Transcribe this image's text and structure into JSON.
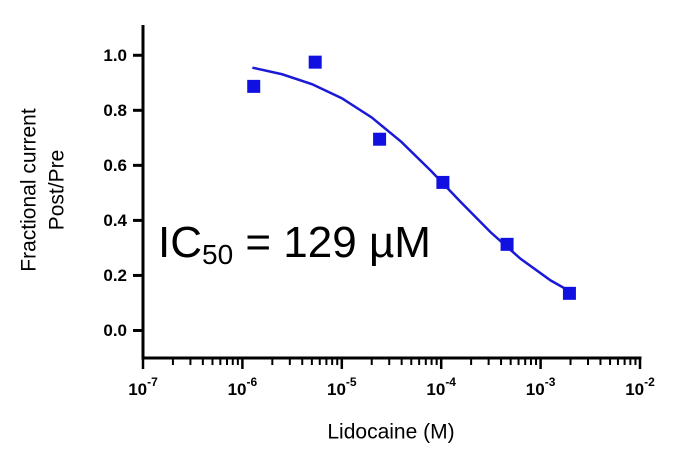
{
  "chart_data": {
    "type": "scatter",
    "x_label": "Lidocaine (M)",
    "y_label": [
      "Fractional current",
      "Post/Pre"
    ],
    "annotation": {
      "text": "IC",
      "sub": "50",
      "rest": " = 129 µM"
    },
    "xscale": "log",
    "xlim": [
      1e-07,
      0.01
    ],
    "xticks": [
      {
        "value": 1e-07,
        "label": "10",
        "sup": "-7"
      },
      {
        "value": 1e-06,
        "label": "10",
        "sup": "-6"
      },
      {
        "value": 1e-05,
        "label": "10",
        "sup": "-5"
      },
      {
        "value": 0.0001,
        "label": "10",
        "sup": "-4"
      },
      {
        "value": 0.001,
        "label": "10",
        "sup": "-3"
      },
      {
        "value": 0.01,
        "label": "10",
        "sup": "-2"
      }
    ],
    "ylim": [
      -0.1,
      1.11
    ],
    "yticks": [
      {
        "value": 0,
        "label": "0.0"
      },
      {
        "value": 0.2,
        "label": "0.2"
      },
      {
        "value": 0.4,
        "label": "0.4"
      },
      {
        "value": 0.6,
        "label": "0.6"
      },
      {
        "value": 0.8,
        "label": "0.8"
      },
      {
        "value": 1,
        "label": "1.0"
      }
    ],
    "series": [
      {
        "type": "scatter",
        "color": "#1010e0",
        "x": [
          1.3e-06,
          5.4e-06,
          2.4e-05,
          0.000104,
          0.00046,
          0.00195
        ],
        "values": [
          0.887,
          0.975,
          0.695,
          0.538,
          0.313,
          0.135
        ]
      },
      {
        "type": "line",
        "color": "#1a1ad6",
        "x": [
          1.26e-06,
          2.51e-06,
          5.01e-06,
          1e-05,
          2e-05,
          3.98e-05,
          7.94e-05,
          0.000158,
          0.000316,
          0.000631,
          0.00126,
          0.002
        ],
        "values": [
          0.955,
          0.931,
          0.895,
          0.844,
          0.774,
          0.685,
          0.579,
          0.466,
          0.356,
          0.26,
          0.182,
          0.141
        ]
      }
    ]
  }
}
